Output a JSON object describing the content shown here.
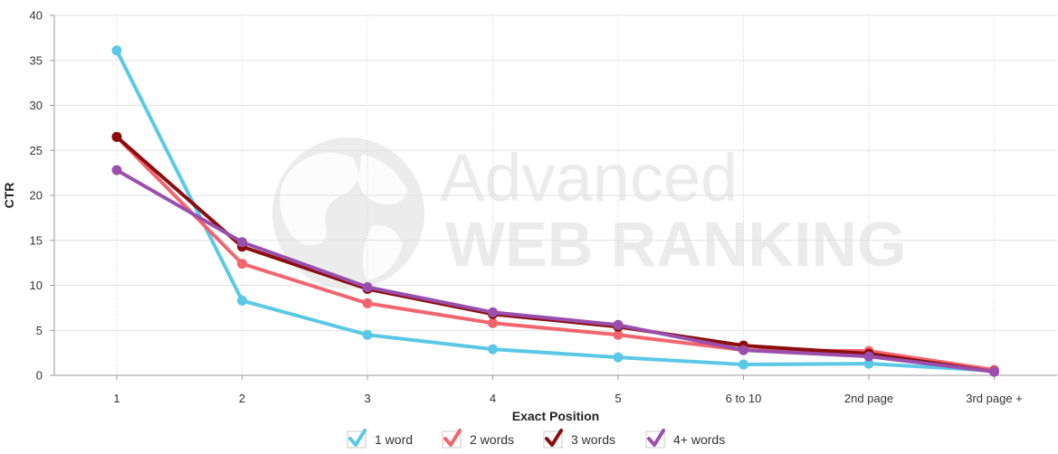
{
  "chart_data": {
    "type": "line",
    "xlabel": "Exact Position",
    "ylabel": "CTR",
    "categories": [
      "1",
      "2",
      "3",
      "4",
      "5",
      "6 to 10",
      "2nd page",
      "3rd page +"
    ],
    "ylim": [
      0,
      40
    ],
    "yticks": [
      0,
      5,
      10,
      15,
      20,
      25,
      30,
      35,
      40
    ],
    "grid": true,
    "legend_position": "bottom-center",
    "series": [
      {
        "name": "1 word",
        "color": "#5bc8e6",
        "values": [
          36.1,
          8.3,
          4.5,
          2.9,
          2.0,
          1.2,
          1.3,
          0.5
        ]
      },
      {
        "name": "2 words",
        "color": "#f2656f",
        "values": [
          26.5,
          12.4,
          8.0,
          5.8,
          4.5,
          2.8,
          2.7,
          0.6
        ]
      },
      {
        "name": "3 words",
        "color": "#8b0d0d",
        "values": [
          26.5,
          14.3,
          9.6,
          6.8,
          5.4,
          3.3,
          2.4,
          0.4
        ]
      },
      {
        "name": "4+ words",
        "color": "#9b4fad",
        "values": [
          22.8,
          14.8,
          9.8,
          7.0,
          5.6,
          2.8,
          2.1,
          0.4
        ]
      }
    ]
  },
  "watermark": {
    "line1": "Advanced",
    "line2": "WEB RANKING",
    "icon": "globe-icon"
  }
}
